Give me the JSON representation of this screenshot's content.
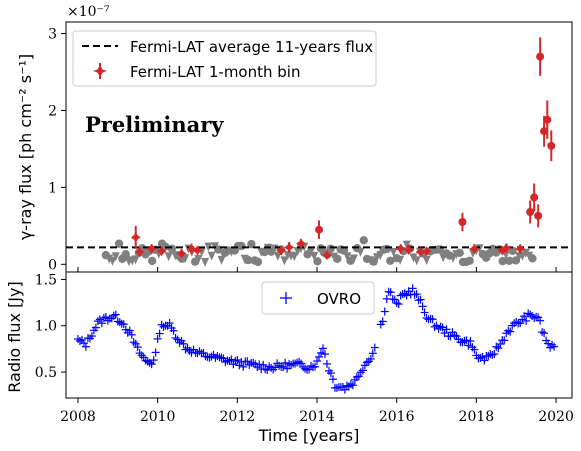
{
  "chart_data": [
    {
      "type": "scatter",
      "panel": "top",
      "ylabel": "γ-ray flux [ph cm⁻² s⁻¹]",
      "offset_text": "×10⁻⁷",
      "annotation": "Preliminary",
      "xlim": [
        2007.7,
        2020.4
      ],
      "ylim": [
        -0.1,
        3.15
      ],
      "y_ticks": [
        "0",
        "1",
        "2",
        "3"
      ],
      "y_tick_values": [
        0,
        1,
        2,
        3
      ],
      "legend_position": "upper-left",
      "average_flux": 0.22,
      "series": [
        {
          "name": "Fermi-LAT average 11-years flux",
          "kind": "hline",
          "color": "#000000"
        },
        {
          "name": "Fermi-LAT 1-month bin",
          "kind": "errorbar",
          "color": "#d62728",
          "points": [
            {
              "x": 2009.45,
              "y": 0.35,
              "err": 0.15
            },
            {
              "x": 2009.55,
              "y": 0.16,
              "err": 0.06
            },
            {
              "x": 2009.85,
              "y": 0.2,
              "err": 0.06
            },
            {
              "x": 2010.1,
              "y": 0.17,
              "err": 0.05
            },
            {
              "x": 2010.6,
              "y": 0.14,
              "err": 0.05
            },
            {
              "x": 2010.85,
              "y": 0.2,
              "err": 0.07
            },
            {
              "x": 2011.0,
              "y": 0.18,
              "err": 0.05
            },
            {
              "x": 2013.1,
              "y": 0.18,
              "err": 0.06
            },
            {
              "x": 2013.3,
              "y": 0.22,
              "err": 0.07
            },
            {
              "x": 2013.6,
              "y": 0.27,
              "err": 0.06
            },
            {
              "x": 2014.05,
              "y": 0.45,
              "err": 0.12
            },
            {
              "x": 2014.25,
              "y": 0.12,
              "err": 0.05
            },
            {
              "x": 2016.1,
              "y": 0.2,
              "err": 0.06
            },
            {
              "x": 2016.3,
              "y": 0.19,
              "err": 0.06
            },
            {
              "x": 2016.6,
              "y": 0.16,
              "err": 0.05
            },
            {
              "x": 2016.75,
              "y": 0.17,
              "err": 0.05
            },
            {
              "x": 2017.65,
              "y": 0.55,
              "err": 0.12
            },
            {
              "x": 2017.95,
              "y": 0.2,
              "err": 0.06
            },
            {
              "x": 2018.65,
              "y": 0.18,
              "err": 0.05
            },
            {
              "x": 2018.75,
              "y": 0.21,
              "err": 0.06
            },
            {
              "x": 2019.1,
              "y": 0.2,
              "err": 0.06
            },
            {
              "x": 2019.35,
              "y": 0.68,
              "err": 0.15
            },
            {
              "x": 2019.45,
              "y": 0.87,
              "err": 0.18
            },
            {
              "x": 2019.55,
              "y": 0.63,
              "err": 0.15
            },
            {
              "x": 2019.6,
              "y": 2.7,
              "err": 0.25
            },
            {
              "x": 2019.7,
              "y": 1.73,
              "err": 0.2
            },
            {
              "x": 2019.78,
              "y": 1.88,
              "err": 0.25
            },
            {
              "x": 2019.88,
              "y": 1.54,
              "err": 0.2
            }
          ]
        }
      ]
    },
    {
      "type": "scatter",
      "panel": "bottom",
      "xlabel": "Time [years]",
      "ylabel": "Radio flux [Jy]",
      "xlim": [
        2007.7,
        2020.4
      ],
      "ylim": [
        0.22,
        1.58
      ],
      "x_ticks": [
        "2008",
        "2010",
        "2012",
        "2014",
        "2016",
        "2018",
        "2020"
      ],
      "x_tick_values": [
        2008,
        2010,
        2012,
        2014,
        2016,
        2018,
        2020
      ],
      "y_ticks": [
        "0.5",
        "1.0",
        "1.5"
      ],
      "y_tick_values": [
        0.5,
        1.0,
        1.5
      ],
      "legend_position": "upper-center",
      "series": [
        {
          "name": "OVRO",
          "marker": "+",
          "color": "#0000ff",
          "curve": [
            [
              2008.0,
              0.84
            ],
            [
              2008.2,
              0.8
            ],
            [
              2008.35,
              0.92
            ],
            [
              2008.5,
              1.03
            ],
            [
              2008.7,
              1.08
            ],
            [
              2008.9,
              1.1
            ],
            [
              2009.1,
              1.05
            ],
            [
              2009.3,
              0.92
            ],
            [
              2009.5,
              0.74
            ],
            [
              2009.7,
              0.62
            ],
            [
              2009.85,
              0.6
            ],
            [
              2009.95,
              0.7
            ],
            [
              2010.05,
              0.95
            ],
            [
              2010.15,
              1.02
            ],
            [
              2010.3,
              1.0
            ],
            [
              2010.5,
              0.87
            ],
            [
              2010.7,
              0.77
            ],
            [
              2011.0,
              0.7
            ],
            [
              2011.5,
              0.65
            ],
            [
              2012.0,
              0.6
            ],
            [
              2012.5,
              0.57
            ],
            [
              2012.8,
              0.55
            ],
            [
              2013.2,
              0.57
            ],
            [
              2013.6,
              0.58
            ],
            [
              2013.8,
              0.55
            ],
            [
              2014.0,
              0.6
            ],
            [
              2014.15,
              0.78
            ],
            [
              2014.25,
              0.6
            ],
            [
              2014.45,
              0.36
            ],
            [
              2014.7,
              0.33
            ],
            [
              2014.95,
              0.4
            ],
            [
              2015.15,
              0.55
            ],
            [
              2015.4,
              0.7
            ],
            [
              2015.55,
              0.92
            ],
            [
              2015.65,
              1.08
            ],
            [
              2015.8,
              1.38
            ],
            [
              2016.0,
              1.22
            ],
            [
              2016.15,
              1.33
            ],
            [
              2016.4,
              1.38
            ],
            [
              2016.6,
              1.25
            ],
            [
              2016.8,
              1.07
            ],
            [
              2017.0,
              1.0
            ],
            [
              2017.3,
              0.92
            ],
            [
              2017.6,
              0.85
            ],
            [
              2017.9,
              0.8
            ],
            [
              2018.0,
              0.66
            ],
            [
              2018.3,
              0.64
            ],
            [
              2018.6,
              0.8
            ],
            [
              2018.8,
              0.95
            ],
            [
              2019.0,
              1.02
            ],
            [
              2019.3,
              1.1
            ],
            [
              2019.55,
              1.1
            ],
            [
              2019.65,
              0.95
            ],
            [
              2019.8,
              0.8
            ],
            [
              2019.95,
              0.74
            ]
          ]
        }
      ]
    }
  ]
}
